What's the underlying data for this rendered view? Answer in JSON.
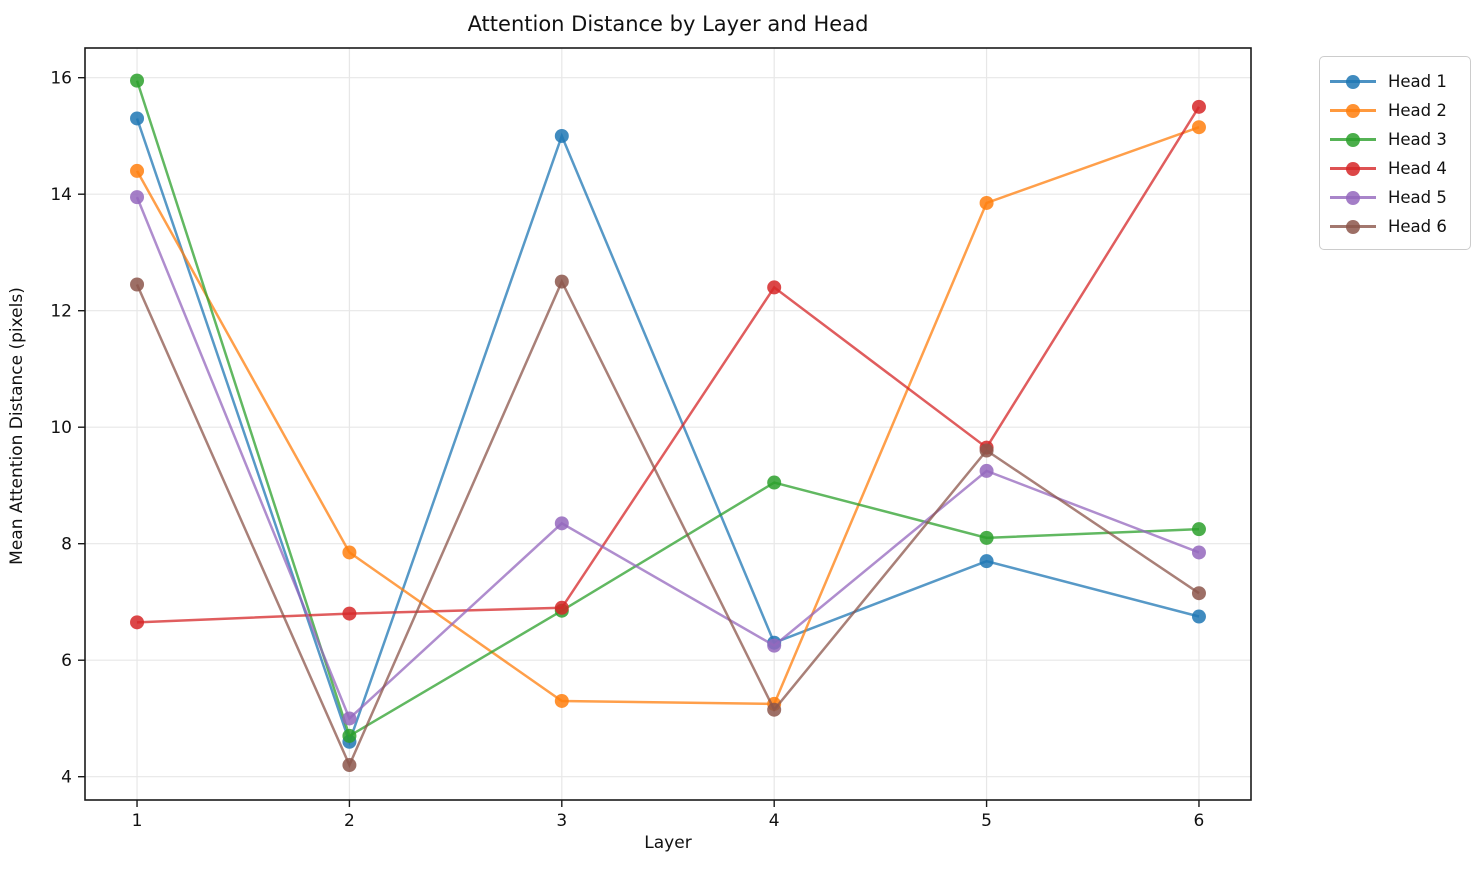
{
  "chart_data": {
    "type": "line",
    "title": "Attention Distance by Layer and Head",
    "xlabel": "Layer",
    "ylabel": "Mean Attention Distance (pixels)",
    "x": [
      1,
      2,
      3,
      4,
      5,
      6
    ],
    "x_ticks": [
      "1",
      "2",
      "3",
      "4",
      "5",
      "6"
    ],
    "y_ticks": [
      "4",
      "6",
      "8",
      "10",
      "12",
      "14",
      "16"
    ],
    "y_tick_values": [
      4,
      6,
      8,
      10,
      12,
      14,
      16
    ],
    "xlim": [
      0.755,
      6.245
    ],
    "ylim": [
      3.6,
      16.51
    ],
    "grid": true,
    "legend_position": "outside-top-right",
    "series": [
      {
        "name": "Head 1",
        "color": "#1f77b4",
        "values": [
          15.3,
          4.6,
          15.0,
          6.3,
          7.7,
          6.75
        ]
      },
      {
        "name": "Head 2",
        "color": "#ff7f0e",
        "values": [
          14.4,
          7.85,
          5.3,
          5.25,
          13.85,
          15.15
        ]
      },
      {
        "name": "Head 3",
        "color": "#2ca02c",
        "values": [
          15.95,
          4.7,
          6.85,
          9.05,
          8.1,
          8.25
        ]
      },
      {
        "name": "Head 4",
        "color": "#d62728",
        "values": [
          6.65,
          6.8,
          6.9,
          12.4,
          9.65,
          15.5
        ]
      },
      {
        "name": "Head 5",
        "color": "#9467bd",
        "values": [
          13.95,
          5.0,
          8.35,
          6.25,
          9.25,
          7.85
        ]
      },
      {
        "name": "Head 6",
        "color": "#8c564b",
        "values": [
          12.45,
          4.2,
          12.5,
          5.15,
          9.6,
          7.15
        ]
      }
    ],
    "style": {
      "grid_color": "#e7e7e7",
      "spine_color": "#1a1a1a",
      "tick_label_color": "#111111",
      "line_width": 2.5,
      "marker_radius": 7,
      "line_opacity": 0.75,
      "marker_opacity": 0.85
    }
  }
}
